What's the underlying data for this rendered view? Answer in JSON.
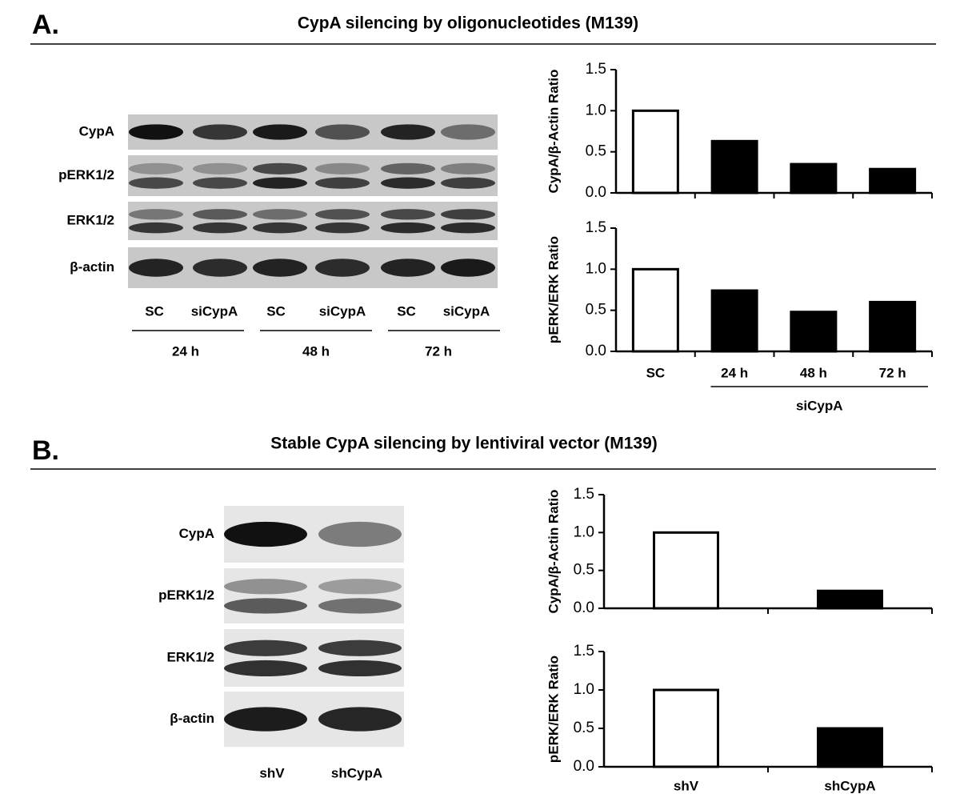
{
  "panels": [
    {
      "label": "A.",
      "title": "CypA silencing by oligonucleotides (M139)",
      "blot_rows": [
        "CypA",
        "pERK1/2",
        "ERK1/2",
        "β-actin"
      ],
      "lanes": [
        "SC",
        "siCypA",
        "SC",
        "siCypA",
        "SC",
        "siCypA"
      ],
      "lane_groups": [
        "24 h",
        "48 h",
        "72 h"
      ],
      "chart_group_label": "siCypA"
    },
    {
      "label": "B.",
      "title": "Stable CypA silencing by lentiviral vector (M139)",
      "blot_rows": [
        "CypA",
        "pERK1/2",
        "ERK1/2",
        "β-actin"
      ],
      "lanes": [
        "shV",
        "shCypA"
      ]
    }
  ],
  "chart_data": [
    {
      "type": "bar",
      "y_label": "CypA/β-Actin Ratio",
      "categories": [
        null,
        null,
        null,
        null
      ],
      "values": [
        1.0,
        0.63,
        0.35,
        0.29
      ],
      "colors": [
        "#ffffff",
        "#000000",
        "#000000",
        "#000000"
      ],
      "ylim": [
        0,
        1.5
      ],
      "yticks": [
        {
          "value": 0,
          "label": "0.0"
        },
        0.5,
        {
          "value": 1,
          "label": "1.0"
        },
        1.5
      ]
    },
    {
      "type": "bar",
      "y_label": "pERK/ERK Ratio",
      "categories": [
        "SC",
        "24 h",
        "48 h",
        "72 h"
      ],
      "values": [
        1.0,
        0.74,
        0.48,
        0.6
      ],
      "colors": [
        "#ffffff",
        "#000000",
        "#000000",
        "#000000"
      ],
      "ylim": [
        0,
        1.5
      ],
      "yticks": [
        {
          "value": 0,
          "label": "0.0"
        },
        0.5,
        {
          "value": 1,
          "label": "1.0"
        },
        1.5
      ]
    },
    {
      "type": "bar",
      "y_label": "CypA/β-Actin Ratio",
      "categories": [
        null,
        null
      ],
      "values": [
        1.0,
        0.23
      ],
      "colors": [
        "#ffffff",
        "#000000"
      ],
      "ylim": [
        0,
        1.5
      ],
      "yticks": [
        {
          "value": 0,
          "label": "0.0"
        },
        0.5,
        {
          "value": 1,
          "label": "1.0"
        },
        1.5
      ]
    },
    {
      "type": "bar",
      "y_label": "pERK/ERK Ratio",
      "categories": [
        "shV",
        "shCypA"
      ],
      "values": [
        1.0,
        0.5
      ],
      "colors": [
        "#ffffff",
        "#000000"
      ],
      "ylim": [
        0,
        1.5
      ],
      "yticks": [
        {
          "value": 0,
          "label": "0.0"
        },
        0.5,
        {
          "value": 1,
          "label": "1.0"
        },
        1.5
      ]
    }
  ]
}
